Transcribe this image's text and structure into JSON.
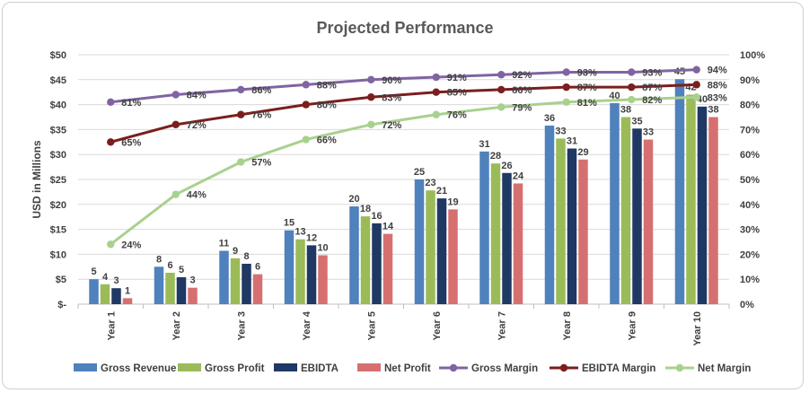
{
  "chart_data": {
    "type": "bar",
    "title": "Projected Performance",
    "ylabel": "USD in Millions",
    "y2label": "",
    "categories": [
      "Year 1",
      "Year 2",
      "Year 3",
      "Year 4",
      "Year 5",
      "Year 6",
      "Year 7",
      "Year 8",
      "Year 9",
      "Year 10"
    ],
    "ylim": [
      0,
      50
    ],
    "y2lim": [
      0,
      100
    ],
    "y_ticks": [
      "$-",
      "$5",
      "$10",
      "$15",
      "$20",
      "$25",
      "$30",
      "$35",
      "$40",
      "$45",
      "$50"
    ],
    "y2_ticks": [
      "0%",
      "10%",
      "20%",
      "30%",
      "40%",
      "50%",
      "60%",
      "70%",
      "80%",
      "90%",
      "100%"
    ],
    "bar_series": [
      {
        "name": "Gross Revenue",
        "color": "#4f81bd",
        "values": [
          5,
          7.5,
          10.7,
          14.8,
          19.6,
          25,
          30.6,
          35.8,
          40.3,
          45.1
        ],
        "labels": [
          "5",
          "8",
          "11",
          "15",
          "20",
          "25",
          "31",
          "36",
          "40",
          "45"
        ]
      },
      {
        "name": "Gross Profit",
        "color": "#9bbb59",
        "values": [
          4,
          6.3,
          9.2,
          13,
          17.6,
          22.8,
          28.2,
          33.2,
          37.5,
          42
        ],
        "labels": [
          "4",
          "6",
          "9",
          "13",
          "18",
          "23",
          "28",
          "33",
          "38",
          "42"
        ]
      },
      {
        "name": "EBIDTA",
        "color": "#1f3864",
        "values": [
          3.2,
          5.4,
          8.1,
          11.8,
          16.2,
          21.2,
          26.3,
          31.2,
          35.2,
          39.6
        ],
        "labels": [
          "3",
          "5",
          "8",
          "12",
          "16",
          "21",
          "26",
          "31",
          "35",
          "40"
        ]
      },
      {
        "name": "Net Profit",
        "color": "#d67070",
        "values": [
          1.2,
          3.3,
          6,
          9.8,
          14.1,
          19,
          24.2,
          29,
          33,
          37.5
        ],
        "labels": [
          "1",
          "3",
          "6",
          "10",
          "14",
          "19",
          "24",
          "29",
          "33",
          "38"
        ]
      }
    ],
    "line_series": [
      {
        "name": "Gross Margin",
        "color": "#8064a2",
        "values": [
          81,
          84,
          86,
          88,
          90,
          91,
          92,
          93,
          93,
          94
        ],
        "labels": [
          "81%",
          "84%",
          "86%",
          "88%",
          "90%",
          "91%",
          "92%",
          "93%",
          "93%",
          "94%"
        ]
      },
      {
        "name": "EBIDTA Margin",
        "color": "#7b1e1e",
        "values": [
          65,
          72,
          76,
          80,
          83,
          85,
          86,
          87,
          87,
          88
        ],
        "labels": [
          "65%",
          "72%",
          "76%",
          "80%",
          "83%",
          "85%",
          "86%",
          "87%",
          "87%",
          "88%"
        ]
      },
      {
        "name": "Net Margin",
        "color": "#a9d18e",
        "values": [
          24,
          44,
          57,
          66,
          72,
          76,
          79,
          81,
          82,
          83
        ],
        "labels": [
          "24%",
          "44%",
          "57%",
          "66%",
          "72%",
          "76%",
          "79%",
          "81%",
          "82%",
          "83%"
        ]
      }
    ],
    "legend_position": "bottom",
    "grid": true
  }
}
